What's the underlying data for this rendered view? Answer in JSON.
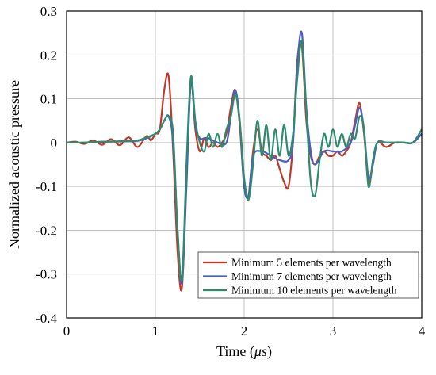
{
  "chart_data": {
    "type": "line",
    "title": "",
    "xlabel": "Time (μs)",
    "xlabel_plain": "Time (",
    "xlabel_mu": "μs",
    "xlabel_close": ")",
    "ylabel": "Normalized acoustic pressure",
    "xlim": [
      0,
      4
    ],
    "ylim": [
      -0.4,
      0.3
    ],
    "xticks": [
      "0",
      "1",
      "2",
      "3",
      "4"
    ],
    "yticks": [
      "0.3",
      "0.2",
      "0.1",
      "0",
      "-0.1",
      "-0.2",
      "-0.3",
      "-0.4"
    ],
    "grid": true,
    "legend_position": "bottom-right",
    "series": [
      {
        "name": "Minimum 5 elements per wavelength",
        "color": "#c0392b",
        "x": [
          0,
          0.1,
          0.2,
          0.3,
          0.4,
          0.5,
          0.6,
          0.7,
          0.8,
          0.9,
          0.95,
          1.0,
          1.05,
          1.1,
          1.15,
          1.2,
          1.25,
          1.3,
          1.35,
          1.4,
          1.45,
          1.5,
          1.55,
          1.6,
          1.65,
          1.7,
          1.75,
          1.8,
          1.85,
          1.9,
          1.95,
          2.0,
          2.05,
          2.1,
          2.15,
          2.2,
          2.25,
          2.3,
          2.35,
          2.4,
          2.45,
          2.5,
          2.55,
          2.6,
          2.65,
          2.7,
          2.75,
          2.8,
          2.85,
          2.9,
          2.95,
          3.0,
          3.05,
          3.1,
          3.15,
          3.2,
          3.25,
          3.3,
          3.35,
          3.4,
          3.45,
          3.5,
          3.6,
          3.7,
          3.8,
          3.9,
          4.0
        ],
        "y": [
          0,
          0.002,
          -0.003,
          0.005,
          -0.005,
          0.008,
          -0.006,
          0.012,
          -0.01,
          0.015,
          0.005,
          0.02,
          0.03,
          0.12,
          0.15,
          -0.02,
          -0.25,
          -0.33,
          -0.08,
          0.14,
          0.03,
          -0.02,
          0.01,
          -0.01,
          0.0,
          -0.01,
          0.0,
          0.02,
          0.08,
          0.12,
          0.04,
          -0.1,
          -0.12,
          -0.02,
          0.03,
          -0.02,
          -0.03,
          -0.04,
          -0.03,
          -0.06,
          -0.09,
          -0.1,
          0.0,
          0.19,
          0.22,
          0.05,
          -0.03,
          -0.05,
          -0.03,
          -0.02,
          -0.03,
          -0.03,
          -0.02,
          -0.03,
          -0.02,
          0.0,
          0.05,
          0.09,
          0.02,
          -0.09,
          -0.05,
          0.0,
          -0.01,
          0.0,
          0.0,
          0.0,
          0.02
        ]
      },
      {
        "name": "Minimum 7 elements per wavelength",
        "color": "#4a5fc1",
        "x": [
          0,
          0.2,
          0.4,
          0.6,
          0.8,
          0.9,
          1.0,
          1.05,
          1.1,
          1.15,
          1.2,
          1.25,
          1.3,
          1.35,
          1.4,
          1.45,
          1.5,
          1.55,
          1.6,
          1.7,
          1.8,
          1.85,
          1.9,
          1.95,
          2.0,
          2.05,
          2.1,
          2.2,
          2.3,
          2.4,
          2.5,
          2.55,
          2.6,
          2.65,
          2.7,
          2.75,
          2.8,
          2.9,
          3.0,
          3.1,
          3.2,
          3.25,
          3.3,
          3.35,
          3.4,
          3.45,
          3.5,
          3.6,
          3.7,
          3.8,
          3.9,
          4.0
        ],
        "y": [
          0,
          0.0,
          0.002,
          0.003,
          0.004,
          0.01,
          0.02,
          0.03,
          0.05,
          0.06,
          0.0,
          -0.2,
          -0.32,
          -0.1,
          0.14,
          0.04,
          0.01,
          0.01,
          0.01,
          0.0,
          0.0,
          0.06,
          0.12,
          0.05,
          -0.1,
          -0.12,
          -0.03,
          -0.02,
          -0.03,
          -0.04,
          -0.04,
          0.0,
          0.18,
          0.25,
          0.08,
          -0.02,
          -0.05,
          -0.02,
          -0.02,
          -0.02,
          0.0,
          0.04,
          0.08,
          0.03,
          -0.08,
          -0.05,
          0.0,
          0.0,
          0.0,
          0.0,
          0.0,
          0.02
        ]
      },
      {
        "name": "Minimum 10 elements per wavelength",
        "color": "#2e8b6e",
        "x": [
          0,
          0.2,
          0.4,
          0.6,
          0.8,
          0.9,
          1.0,
          1.05,
          1.1,
          1.15,
          1.2,
          1.25,
          1.3,
          1.35,
          1.4,
          1.45,
          1.5,
          1.55,
          1.6,
          1.65,
          1.7,
          1.75,
          1.8,
          1.85,
          1.9,
          1.95,
          2.0,
          2.05,
          2.1,
          2.15,
          2.2,
          2.25,
          2.3,
          2.35,
          2.4,
          2.45,
          2.5,
          2.55,
          2.6,
          2.65,
          2.7,
          2.75,
          2.8,
          2.85,
          2.9,
          2.95,
          3.0,
          3.05,
          3.1,
          3.15,
          3.2,
          3.25,
          3.3,
          3.35,
          3.4,
          3.45,
          3.5,
          3.6,
          3.7,
          3.8,
          3.9,
          4.0
        ],
        "y": [
          0,
          0.0,
          0.002,
          0.003,
          0.005,
          0.012,
          0.02,
          0.03,
          0.05,
          0.06,
          0.02,
          -0.2,
          -0.31,
          -0.05,
          0.15,
          0.05,
          0.0,
          -0.02,
          0.02,
          -0.01,
          0.02,
          -0.01,
          0.03,
          0.06,
          0.11,
          0.05,
          -0.08,
          -0.13,
          -0.05,
          0.05,
          -0.03,
          0.04,
          -0.04,
          0.03,
          -0.03,
          0.04,
          -0.03,
          0.02,
          0.15,
          0.23,
          0.07,
          -0.09,
          -0.12,
          -0.04,
          0.02,
          -0.01,
          0.03,
          -0.01,
          0.02,
          -0.01,
          0.02,
          0.01,
          0.06,
          0.03,
          -0.1,
          -0.04,
          0.0,
          0.0,
          0.0,
          0.0,
          0.0,
          0.03
        ]
      }
    ]
  }
}
